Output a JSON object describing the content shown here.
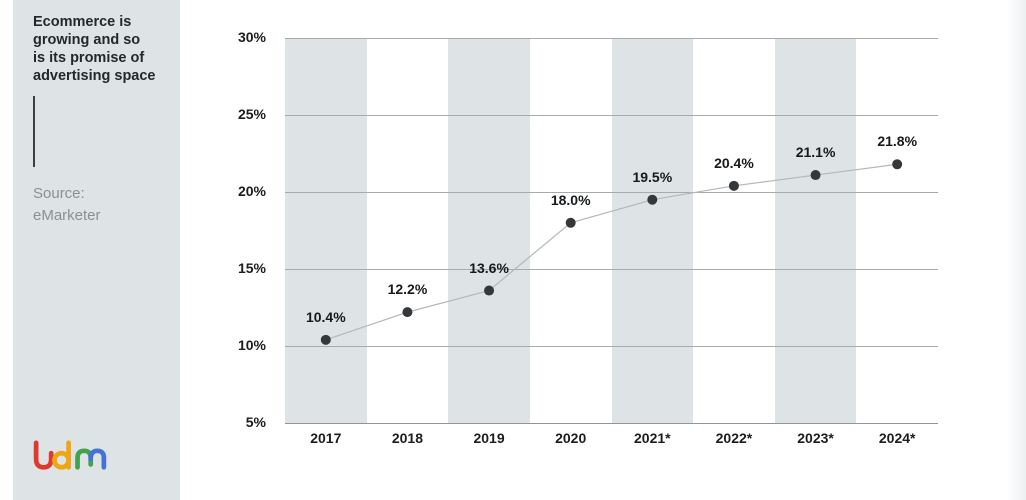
{
  "sidebar": {
    "heading_lines": [
      "Ecommerce is",
      "growing and so",
      "is its promise of",
      "advertising space"
    ],
    "source_label": "Source:",
    "source_name": "eMarketer",
    "logo": {
      "name": "ldm-logo",
      "colors": {
        "red": "#e03a2f",
        "yellow": "#f0a512",
        "green": "#42a24e",
        "blue": "#4472d9"
      }
    }
  },
  "chart_data": {
    "type": "line",
    "title": "Ecommerce is growing and so is its promise of advertising space",
    "source": "eMarketer",
    "categories": [
      "2017",
      "2018",
      "2019",
      "2020",
      "2021*",
      "2022*",
      "2023*",
      "2024*"
    ],
    "values": [
      10.4,
      12.2,
      13.6,
      18.0,
      19.5,
      20.4,
      21.1,
      21.8
    ],
    "point_labels": [
      "10.4%",
      "12.2%",
      "13.6%",
      "18.0%",
      "19.5%",
      "20.4%",
      "21.1%",
      "21.8%"
    ],
    "ylim": [
      5,
      30
    ],
    "yticks": [
      5,
      10,
      15,
      20,
      25,
      30
    ],
    "ytick_labels": [
      "5%",
      "10%",
      "15%",
      "20%",
      "25%",
      "30%"
    ],
    "grid": "horizontal",
    "legend": "none",
    "banded_columns": [
      0,
      2,
      4,
      6
    ],
    "colors": {
      "band": "#dee3e5",
      "gridline": "#a6abad",
      "line": "#b4b8ba",
      "dot": "#35383b",
      "label": "#17191b"
    }
  }
}
